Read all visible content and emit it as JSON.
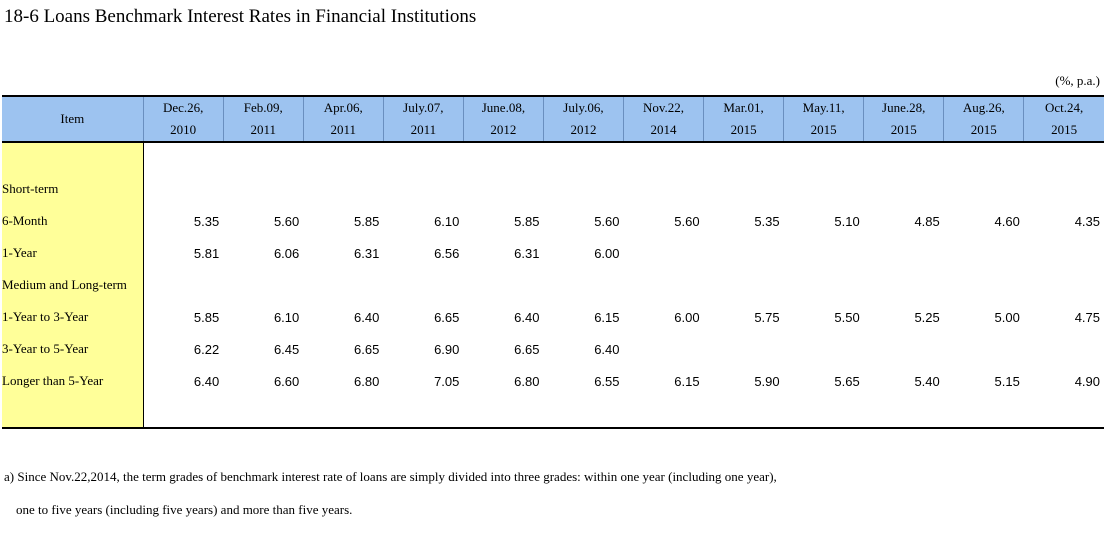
{
  "title": "18-6  Loans Benchmark Interest Rates in Financial Institutions",
  "unit": "(%, p.a.)",
  "header": {
    "item": "Item",
    "columns": [
      {
        "date": "Dec.26,",
        "year": "2010"
      },
      {
        "date": "Feb.09,",
        "year": "2011"
      },
      {
        "date": "Apr.06,",
        "year": "2011"
      },
      {
        "date": "July.07,",
        "year": "2011"
      },
      {
        "date": "June.08,",
        "year": "2012"
      },
      {
        "date": "July.06,",
        "year": "2012"
      },
      {
        "date": "Nov.22,",
        "year": "2014"
      },
      {
        "date": "Mar.01,",
        "year": "2015"
      },
      {
        "date": "May.11,",
        "year": "2015"
      },
      {
        "date": "June.28,",
        "year": "2015"
      },
      {
        "date": "Aug.26,",
        "year": "2015"
      },
      {
        "date": "Oct.24,",
        "year": "2015"
      }
    ]
  },
  "rows": [
    {
      "label": "Short-term",
      "indent": 0,
      "values": [
        "",
        "",
        "",
        "",
        "",
        "",
        "",
        "",
        "",
        "",
        "",
        ""
      ]
    },
    {
      "label": "6-Month",
      "indent": 1,
      "values": [
        "5.35",
        "5.60",
        "5.85",
        "6.10",
        "5.85",
        "5.60",
        "5.60",
        "5.35",
        "5.10",
        "4.85",
        "4.60",
        "4.35"
      ]
    },
    {
      "label": "1-Year",
      "indent": 1,
      "values": [
        "5.81",
        "6.06",
        "6.31",
        "6.56",
        "6.31",
        "6.00",
        "",
        "",
        "",
        "",
        "",
        ""
      ]
    },
    {
      "label": "Medium and Long-term",
      "indent": 0,
      "values": [
        "",
        "",
        "",
        "",
        "",
        "",
        "",
        "",
        "",
        "",
        "",
        ""
      ]
    },
    {
      "label": "1-Year to 3-Year",
      "indent": 1,
      "values": [
        "5.85",
        "6.10",
        "6.40",
        "6.65",
        "6.40",
        "6.15",
        "6.00",
        "5.75",
        "5.50",
        "5.25",
        "5.00",
        "4.75"
      ]
    },
    {
      "label": "3-Year to 5-Year",
      "indent": 1,
      "values": [
        "6.22",
        "6.45",
        "6.65",
        "6.90",
        "6.65",
        "6.40",
        "",
        "",
        "",
        "",
        "",
        ""
      ]
    },
    {
      "label": "Longer than 5-Year",
      "indent": 1,
      "values": [
        "6.40",
        "6.60",
        "6.80",
        "7.05",
        "6.80",
        "6.55",
        "6.15",
        "5.90",
        "5.65",
        "5.40",
        "5.15",
        "4.90"
      ]
    }
  ],
  "notes": [
    "a) Since Nov.22,2014, the term grades of benchmark interest rate of loans are simply divided into three grades: within one year (including one year),",
    "one to five years (including five years) and more than five years."
  ]
}
